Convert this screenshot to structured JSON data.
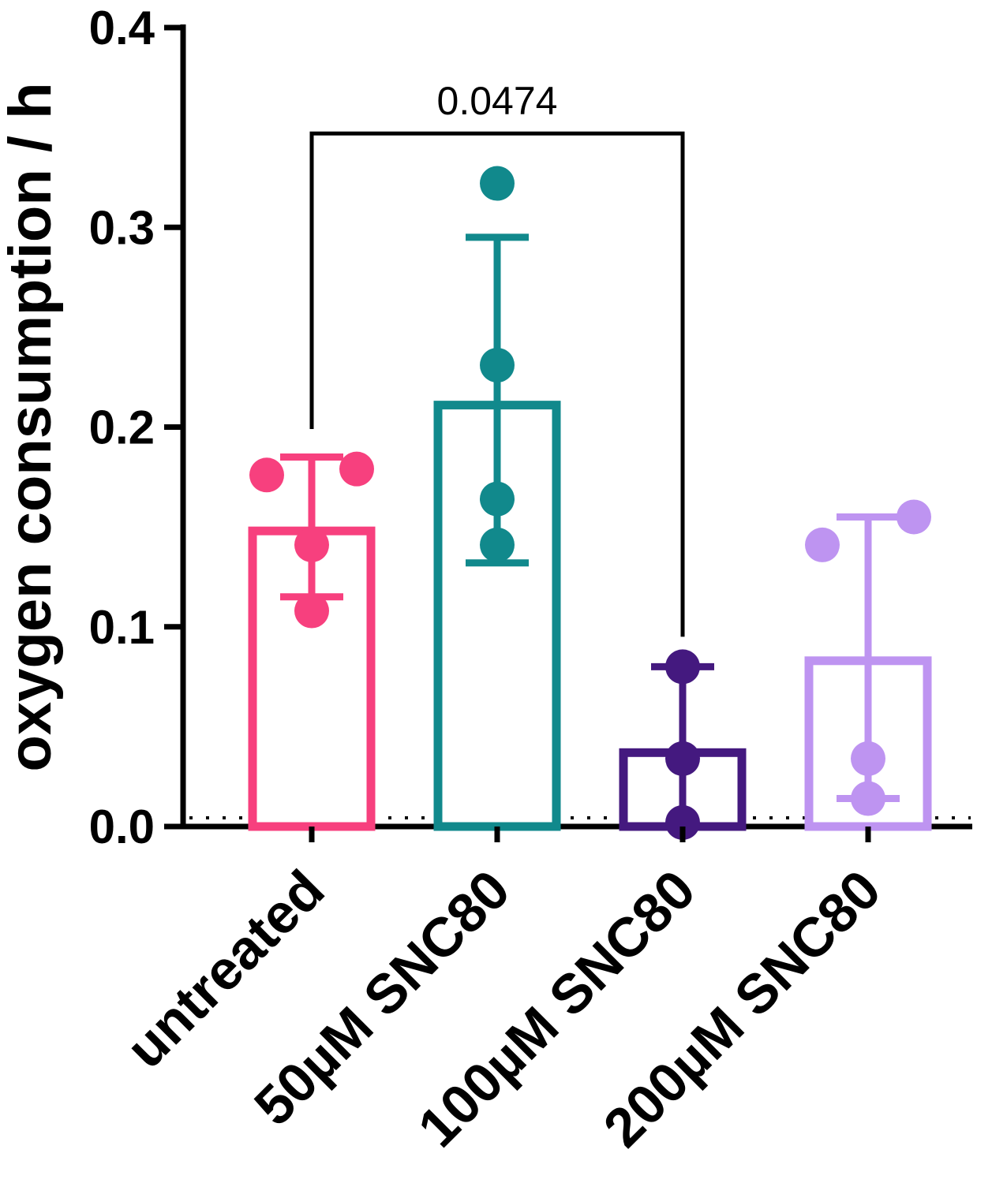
{
  "chart_data": {
    "type": "bar",
    "title": "",
    "xlabel": "",
    "ylabel": "oxygen consumption / h",
    "ylim": [
      0,
      0.4
    ],
    "yticks": [
      0.0,
      0.1,
      0.2,
      0.3,
      0.4
    ],
    "ytick_labels": [
      "0.0",
      "0.1",
      "0.2",
      "0.3",
      "0.4"
    ],
    "grid": false,
    "legend": false,
    "categories": [
      "untreated",
      "50µM SNC80",
      "100µM SNC80",
      "200µM SNC80"
    ],
    "bars": [
      {
        "category": "untreated",
        "mean": 0.148,
        "err_lo": 0.115,
        "err_hi": 0.185,
        "color": "#F7407E",
        "points": [
          {
            "value": 0.176,
            "dx": -57
          },
          {
            "value": 0.179,
            "dx": 57
          },
          {
            "value": 0.141,
            "dx": 0
          },
          {
            "value": 0.108,
            "dx": 0
          }
        ]
      },
      {
        "category": "50µM SNC80",
        "mean": 0.211,
        "err_lo": 0.132,
        "err_hi": 0.295,
        "color": "#11898C",
        "points": [
          {
            "value": 0.322,
            "dx": 0
          },
          {
            "value": 0.231,
            "dx": 0
          },
          {
            "value": 0.164,
            "dx": 0
          },
          {
            "value": 0.141,
            "dx": 0
          }
        ]
      },
      {
        "category": "100µM SNC80",
        "mean": 0.037,
        "err_lo": 0.0,
        "err_hi": 0.08,
        "color": "#44197F",
        "points": [
          {
            "value": 0.08,
            "dx": 0
          },
          {
            "value": 0.034,
            "dx": 0
          },
          {
            "value": 0.002,
            "dx": 0
          }
        ]
      },
      {
        "category": "200µM SNC80",
        "mean": 0.083,
        "err_lo": 0.014,
        "err_hi": 0.155,
        "color": "#BE94F1",
        "points": [
          {
            "value": 0.141,
            "dx": -58
          },
          {
            "value": 0.155,
            "dx": 58
          },
          {
            "value": 0.034,
            "dx": 0
          },
          {
            "value": 0.014,
            "dx": 0
          }
        ]
      }
    ],
    "significance": {
      "label": "0.0474",
      "from_category": "untreated",
      "to_category": "100µM SNC80",
      "top_value": 0.347,
      "left_drop_value": 0.199,
      "right_drop_value": 0.095
    }
  }
}
